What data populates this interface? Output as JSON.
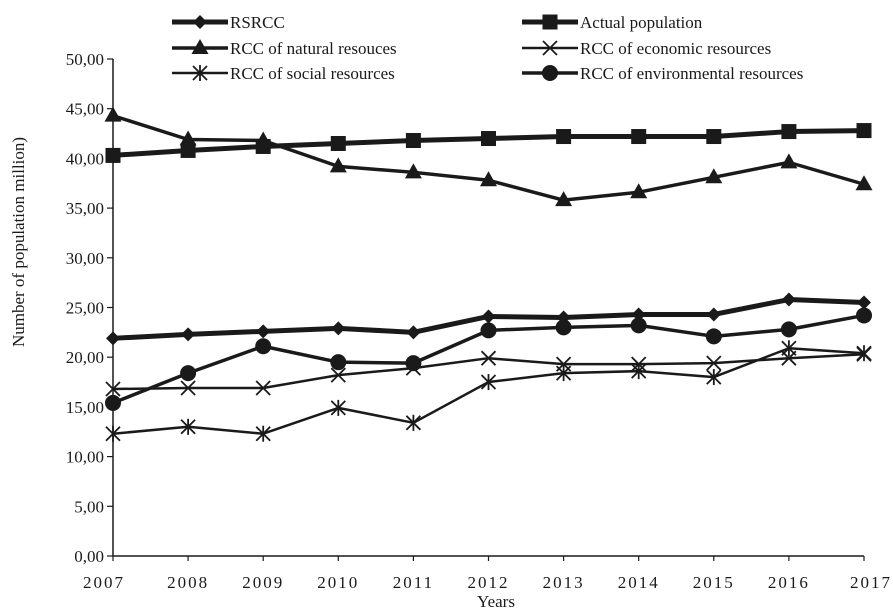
{
  "chart_data": {
    "type": "line",
    "title": "",
    "xlabel": "Years",
    "ylabel": "Number of population    million)",
    "categories": [
      "2007",
      "2008",
      "2009",
      "2010",
      "2011",
      "2012",
      "2013",
      "2014",
      "2015",
      "2016",
      "2017"
    ],
    "ylim": [
      0,
      50
    ],
    "yticks": [
      "0,00",
      "5,00",
      "10,00",
      "15,00",
      "20,00",
      "25,00",
      "30,00",
      "35,00",
      "40,00",
      "45,00",
      "50,00"
    ],
    "grid": false,
    "legend_position": "top",
    "series": [
      {
        "name": "RSRCC",
        "marker": "diamond",
        "line_width": 5,
        "values": [
          21.9,
          22.3,
          22.6,
          22.9,
          22.5,
          24.1,
          24.0,
          24.3,
          24.3,
          25.8,
          25.5
        ]
      },
      {
        "name": "Actual population",
        "marker": "square",
        "line_width": 5,
        "values": [
          40.3,
          40.8,
          41.2,
          41.5,
          41.8,
          42.0,
          42.2,
          42.2,
          42.2,
          42.7,
          42.8
        ]
      },
      {
        "name": "RCC of natural resouces",
        "marker": "triangle",
        "line_width": 3.5,
        "values": [
          44.3,
          41.9,
          41.8,
          39.2,
          38.6,
          37.8,
          35.8,
          36.6,
          38.1,
          39.6,
          37.4
        ]
      },
      {
        "name": "RCC of economic resources",
        "marker": "x",
        "line_width": 2.5,
        "values": [
          16.8,
          16.9,
          16.9,
          18.2,
          18.9,
          19.9,
          19.3,
          19.3,
          19.4,
          19.9,
          20.3
        ]
      },
      {
        "name": "RCC of social resources",
        "marker": "asterisk",
        "line_width": 2.5,
        "values": [
          12.3,
          13.0,
          12.3,
          14.9,
          13.4,
          17.5,
          18.4,
          18.6,
          18.0,
          20.9,
          20.4
        ]
      },
      {
        "name": "RCC of environmental resources",
        "marker": "circle",
        "line_width": 3.5,
        "values": [
          15.4,
          18.4,
          21.1,
          19.5,
          19.4,
          22.7,
          23.0,
          23.2,
          22.1,
          22.8,
          24.2
        ]
      }
    ],
    "colors": {
      "line": "#1a1a1a",
      "background": "#ffffff"
    }
  }
}
